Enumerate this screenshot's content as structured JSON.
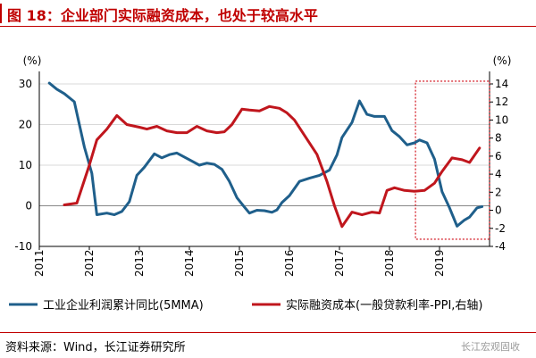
{
  "header": {
    "title": "图 18：企业部门实际融资成本，也处于较高水平"
  },
  "footer": {
    "source": "资料来源：Wind，长江证券研究所",
    "watermark": "长江宏观固收"
  },
  "chart_data": {
    "type": "line",
    "title": "",
    "left_unit": "(%)",
    "right_unit": "(%)",
    "left_ylim": [
      -10,
      30
    ],
    "left_yticks": [
      "-10",
      "0",
      "10",
      "20",
      "30"
    ],
    "right_ylim": [
      -4,
      14
    ],
    "right_yticks": [
      "-4",
      "-2",
      "0",
      "2",
      "4",
      "6",
      "8",
      "10",
      "12",
      "14"
    ],
    "x_ticks": [
      "2011",
      "2012",
      "2013",
      "2014",
      "2015",
      "2016",
      "2017",
      "2018",
      "2019"
    ],
    "x_range": [
      2011.0,
      2020.0
    ],
    "grid": true,
    "legend_position": "bottom",
    "highlight_box": {
      "x": [
        2018.52,
        2020.0
      ],
      "right_y": [
        -3.2,
        14.3
      ],
      "style": "red-dotted"
    },
    "series": [
      {
        "name": "工业企业利润累计同比(5MMA)",
        "axis": "left",
        "color": "#1f5f8b",
        "points": [
          [
            2011.2,
            30.2
          ],
          [
            2011.35,
            28.7
          ],
          [
            2011.5,
            27.6
          ],
          [
            2011.7,
            25.6
          ],
          [
            2011.9,
            14.5
          ],
          [
            2012.05,
            8.0
          ],
          [
            2012.15,
            -2.2
          ],
          [
            2012.35,
            -1.8
          ],
          [
            2012.5,
            -2.2
          ],
          [
            2012.65,
            -1.4
          ],
          [
            2012.8,
            1.0
          ],
          [
            2012.95,
            7.5
          ],
          [
            2013.1,
            9.5
          ],
          [
            2013.3,
            12.8
          ],
          [
            2013.45,
            11.8
          ],
          [
            2013.6,
            12.6
          ],
          [
            2013.75,
            13.0
          ],
          [
            2013.9,
            12.0
          ],
          [
            2014.05,
            11.0
          ],
          [
            2014.2,
            10.0
          ],
          [
            2014.35,
            10.5
          ],
          [
            2014.5,
            10.2
          ],
          [
            2014.65,
            9.0
          ],
          [
            2014.8,
            6.0
          ],
          [
            2014.95,
            2.0
          ],
          [
            2015.1,
            -0.3
          ],
          [
            2015.2,
            -1.8
          ],
          [
            2015.35,
            -1.1
          ],
          [
            2015.5,
            -1.2
          ],
          [
            2015.65,
            -1.6
          ],
          [
            2015.75,
            -1.0
          ],
          [
            2015.85,
            0.8
          ],
          [
            2016.0,
            2.5
          ],
          [
            2016.2,
            6.0
          ],
          [
            2016.4,
            6.8
          ],
          [
            2016.6,
            7.5
          ],
          [
            2016.8,
            8.8
          ],
          [
            2016.95,
            12.5
          ],
          [
            2017.05,
            16.8
          ],
          [
            2017.25,
            20.5
          ],
          [
            2017.4,
            25.8
          ],
          [
            2017.55,
            22.5
          ],
          [
            2017.7,
            22.0
          ],
          [
            2017.9,
            22.0
          ],
          [
            2018.05,
            18.5
          ],
          [
            2018.2,
            17.0
          ],
          [
            2018.35,
            15.0
          ],
          [
            2018.5,
            15.5
          ],
          [
            2018.6,
            16.2
          ],
          [
            2018.75,
            15.5
          ],
          [
            2018.9,
            11.5
          ],
          [
            2019.05,
            3.5
          ],
          [
            2019.2,
            -0.5
          ],
          [
            2019.35,
            -5.0
          ],
          [
            2019.5,
            -3.5
          ],
          [
            2019.6,
            -2.8
          ],
          [
            2019.75,
            -0.5
          ],
          [
            2019.85,
            -0.2
          ]
        ]
      },
      {
        "name": "实际融资成本(一般贷款利率-PPI,右轴)",
        "axis": "right",
        "color": "#c0161d",
        "points": [
          [
            2011.5,
            0.6
          ],
          [
            2011.75,
            0.8
          ],
          [
            2012.0,
            5.0
          ],
          [
            2012.15,
            7.8
          ],
          [
            2012.35,
            9.0
          ],
          [
            2012.55,
            10.5
          ],
          [
            2012.75,
            9.5
          ],
          [
            2013.0,
            9.2
          ],
          [
            2013.15,
            9.0
          ],
          [
            2013.35,
            9.3
          ],
          [
            2013.55,
            8.8
          ],
          [
            2013.75,
            8.6
          ],
          [
            2013.95,
            8.6
          ],
          [
            2014.15,
            9.3
          ],
          [
            2014.35,
            8.8
          ],
          [
            2014.55,
            8.6
          ],
          [
            2014.7,
            8.7
          ],
          [
            2014.85,
            9.5
          ],
          [
            2015.05,
            11.2
          ],
          [
            2015.2,
            11.1
          ],
          [
            2015.4,
            11.0
          ],
          [
            2015.6,
            11.5
          ],
          [
            2015.8,
            11.3
          ],
          [
            2015.95,
            10.8
          ],
          [
            2016.1,
            10.0
          ],
          [
            2016.3,
            8.3
          ],
          [
            2016.55,
            6.2
          ],
          [
            2016.75,
            3.2
          ],
          [
            2016.9,
            0.5
          ],
          [
            2017.05,
            -1.8
          ],
          [
            2017.25,
            -0.2
          ],
          [
            2017.45,
            -0.5
          ],
          [
            2017.65,
            -0.2
          ],
          [
            2017.8,
            -0.3
          ],
          [
            2017.95,
            2.2
          ],
          [
            2018.1,
            2.5
          ],
          [
            2018.3,
            2.2
          ],
          [
            2018.5,
            2.1
          ],
          [
            2018.7,
            2.2
          ],
          [
            2018.9,
            3.0
          ],
          [
            2019.05,
            4.3
          ],
          [
            2019.25,
            5.8
          ],
          [
            2019.45,
            5.6
          ],
          [
            2019.6,
            5.3
          ],
          [
            2019.8,
            6.9
          ]
        ]
      }
    ]
  }
}
